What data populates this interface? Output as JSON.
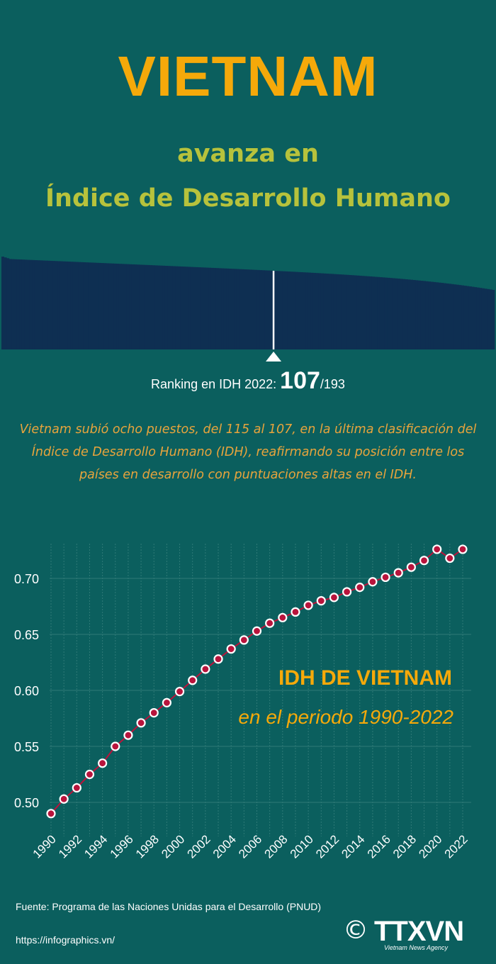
{
  "header": {
    "title": "VIETNAM",
    "subtitle_line1": "avanza en",
    "subtitle_line2": "Índice de Desarrollo Humano"
  },
  "ranking": {
    "label": "Ranking en IDH 2022:",
    "rank": 107,
    "rank_text": "107",
    "total_text": "/193",
    "total": 193
  },
  "description": "Vietnam subió ocho puestos, del 115 al 107, en la última clasificación del Índice de Desarrollo Humano (IDH), reafirmando su posición entre los países en desarrollo con puntuaciones altas en el IDH.",
  "chart_data": {
    "type": "line",
    "title": "IDH DE VIETNAM",
    "subtitle": "en el periodo 1990-2022",
    "xlabel": "",
    "ylabel": "",
    "x": [
      1990,
      1991,
      1992,
      1993,
      1994,
      1995,
      1996,
      1997,
      1998,
      1999,
      2000,
      2001,
      2002,
      2003,
      2004,
      2005,
      2006,
      2007,
      2008,
      2009,
      2010,
      2011,
      2012,
      2013,
      2014,
      2015,
      2016,
      2017,
      2018,
      2019,
      2020,
      2021,
      2022
    ],
    "values": [
      0.49,
      0.503,
      0.513,
      0.525,
      0.535,
      0.55,
      0.56,
      0.571,
      0.58,
      0.589,
      0.599,
      0.609,
      0.619,
      0.628,
      0.637,
      0.645,
      0.653,
      0.66,
      0.665,
      0.67,
      0.676,
      0.68,
      0.683,
      0.688,
      0.692,
      0.697,
      0.701,
      0.705,
      0.71,
      0.716,
      0.726,
      0.718,
      0.726
    ],
    "x_ticks": [
      "1990",
      "1992",
      "1994",
      "1996",
      "1998",
      "2000",
      "2002",
      "2004",
      "2006",
      "2008",
      "2010",
      "2012",
      "2014",
      "2016",
      "2018",
      "2020",
      "2022"
    ],
    "y_ticks": [
      "0.50",
      "0.55",
      "0.60",
      "0.65",
      "0.70"
    ],
    "ylim": [
      0.48,
      0.74
    ],
    "grid": true,
    "line_color": "#b8143c",
    "marker_color": "#b8143c"
  },
  "footer": {
    "source": "Fuente: Programa de las Naciones Unidas para el Desarrollo (PNUD)",
    "url": "https://infographics.vn/",
    "copyright_symbol": "©",
    "logo_text": "TTXVN",
    "logo_tagline": "Vietnam News Agency"
  },
  "colors": {
    "background": "#0b5f5e",
    "title": "#f5a90a",
    "subtitle": "#b7c23c",
    "bars": "#0e2f52",
    "description": "#e8a43c"
  }
}
